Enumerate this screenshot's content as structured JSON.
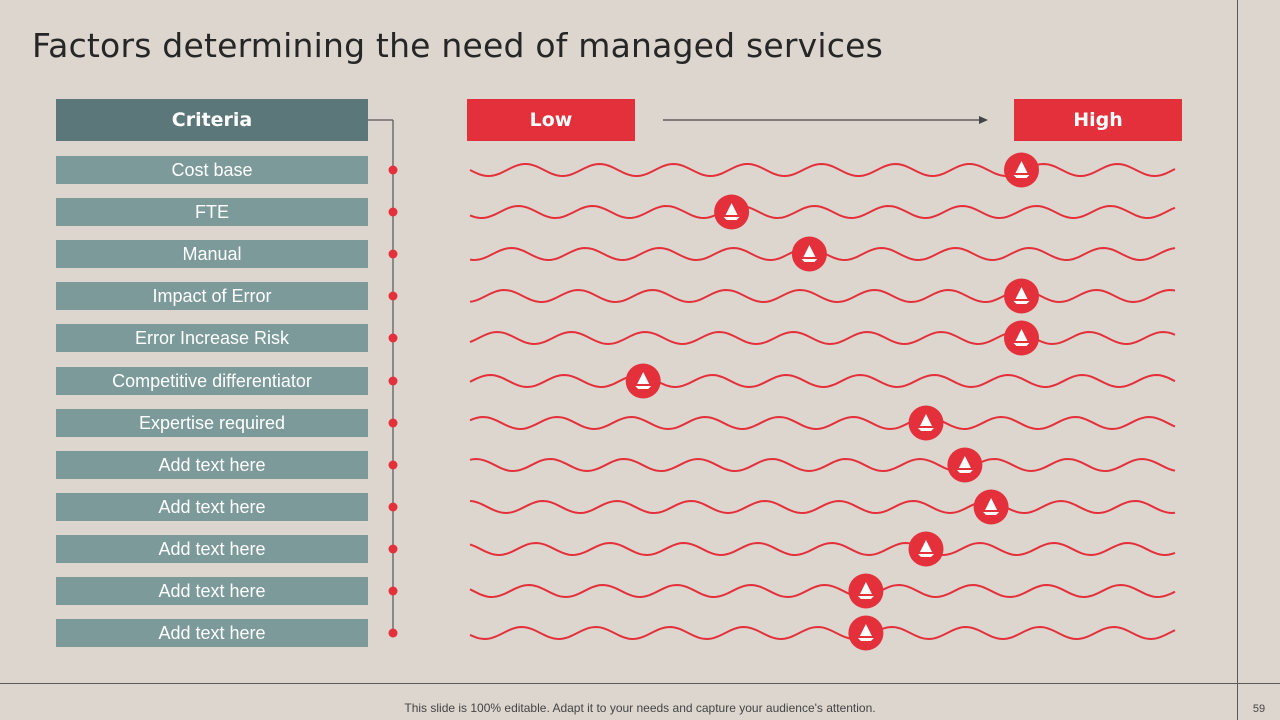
{
  "title": "Factors determining the need of managed services",
  "criteria_header": "Criteria",
  "scale": {
    "low_label": "Low",
    "high_label": "High"
  },
  "criteria": [
    {
      "label": "Cost base",
      "level": 0.78
    },
    {
      "label": "FTE",
      "level": 0.37
    },
    {
      "label": "Manual",
      "level": 0.48
    },
    {
      "label": "Impact of Error",
      "level": 0.78
    },
    {
      "label": "Error Increase Risk",
      "level": 0.78
    },
    {
      "label": "Competitive differentiator",
      "level": 0.245
    },
    {
      "label": "Expertise required",
      "level": 0.645
    },
    {
      "label": "Add text here",
      "level": 0.7
    },
    {
      "label": "Add text here",
      "level": 0.737
    },
    {
      "label": "Add text here",
      "level": 0.645
    },
    {
      "label": "Add text here",
      "level": 0.56
    },
    {
      "label": "Add text here",
      "level": 0.56
    }
  ],
  "footer_note": "This slide is 100% editable. Adapt it to your needs and capture your audience's attention.",
  "page_number": "59",
  "colors": {
    "accent": "#e4303a",
    "header": "#5b7779",
    "row": "#7c9a9a",
    "background": "#dcd6cf"
  }
}
